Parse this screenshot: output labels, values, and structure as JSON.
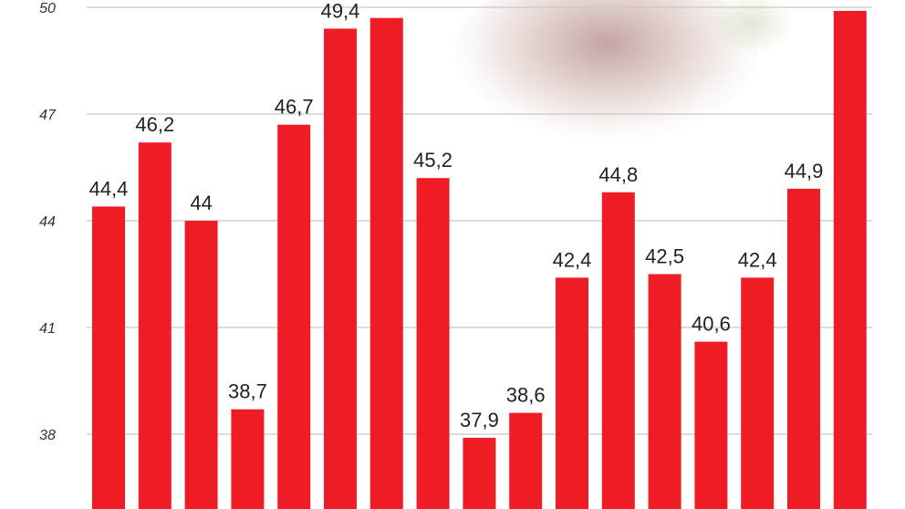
{
  "chart_data": {
    "type": "bar",
    "values": [
      44.4,
      46.2,
      44,
      38.7,
      46.7,
      49.4,
      49.7,
      45.2,
      37.9,
      38.6,
      42.4,
      44.8,
      42.5,
      40.6,
      42.4,
      44.9,
      49.9
    ],
    "data_labels": [
      "44,4",
      "46,2",
      "44",
      "38,7",
      "46,7",
      "49,4",
      "",
      "45,2",
      "37,9",
      "38,6",
      "42,4",
      "44,8",
      "42,5",
      "40,6",
      "42,4",
      "44,9",
      ""
    ],
    "yticks": [
      "50",
      "47",
      "44",
      "41",
      "38"
    ],
    "ytick_values": [
      50,
      47,
      44,
      41,
      38
    ],
    "ylim": [
      35.9,
      50.2
    ],
    "grid": true,
    "bar_color": "#ee1c25",
    "grid_color": "#c8c8c8"
  }
}
